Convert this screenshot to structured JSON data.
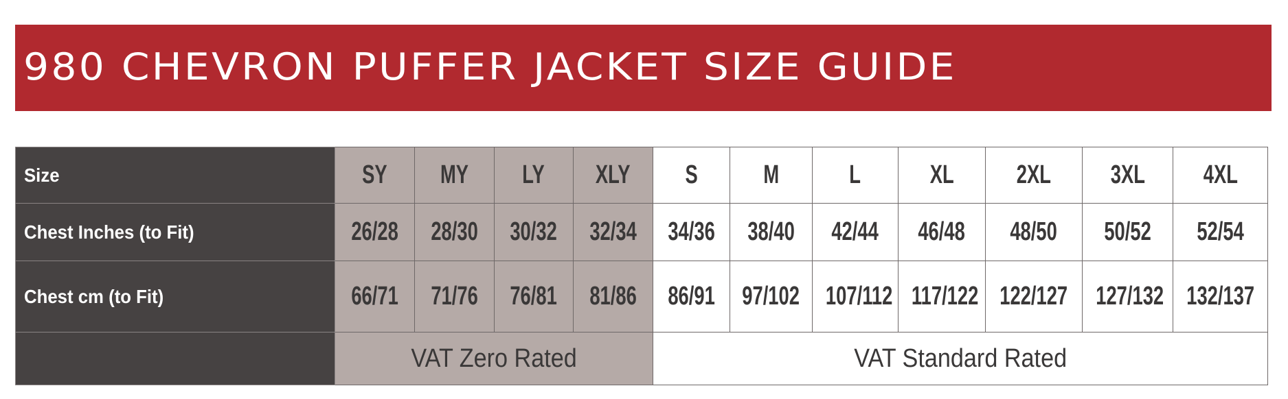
{
  "title": "980 CHEVRON PUFFER JACKET SIZE GUIDE",
  "colors": {
    "banner": "#b1292f",
    "label_column": "#464242",
    "youth_columns": "#b5aaa7",
    "adult_columns": "#ffffff"
  },
  "table": {
    "row_labels": [
      "Size",
      "Chest Inches (to Fit)",
      "Chest cm (to Fit)",
      ""
    ],
    "youth": {
      "sizes": [
        "SY",
        "MY",
        "LY",
        "XLY"
      ],
      "chest_inches": [
        "26/28",
        "28/30",
        "30/32",
        "32/34"
      ],
      "chest_cm": [
        "66/71",
        "71/76",
        "76/81",
        "81/86"
      ],
      "vat": "VAT Zero Rated"
    },
    "adult": {
      "sizes": [
        "S",
        "M",
        "L",
        "XL",
        "2XL",
        "3XL",
        "4XL"
      ],
      "chest_inches": [
        "34/36",
        "38/40",
        "42/44",
        "46/48",
        "48/50",
        "50/52",
        "52/54"
      ],
      "chest_cm": [
        "86/91",
        "97/102",
        "107/112",
        "117/122",
        "122/127",
        "127/132",
        "132/137"
      ],
      "vat": "VAT Standard Rated"
    }
  }
}
